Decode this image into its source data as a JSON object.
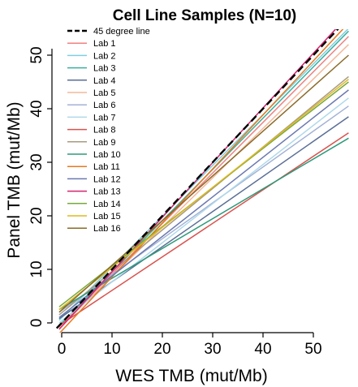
{
  "chart_data": {
    "type": "line",
    "title": "Cell Line Samples (N=10)",
    "xlabel": "WES TMB (mut/Mb)",
    "ylabel": "Panel TMB (mut/Mb)",
    "xlim": [
      -0.5,
      57
    ],
    "ylim": [
      -1.5,
      57
    ],
    "xticks": [
      0,
      10,
      20,
      30,
      40,
      50
    ],
    "yticks": [
      0,
      10,
      20,
      30,
      40,
      50
    ],
    "grid": false,
    "legend_position": "top-left",
    "reference_line": {
      "name": "45 degree line",
      "x": [
        -1,
        57
      ],
      "y": [
        -1,
        57
      ],
      "color": "#000000",
      "dash": "dashed"
    },
    "series": [
      {
        "name": "Lab 1",
        "color": "#f08080",
        "x": [
          -0.5,
          57
        ],
        "y": [
          -0.8,
          53.5
        ]
      },
      {
        "name": "Lab 2",
        "color": "#7fcfe0",
        "x": [
          -0.5,
          57
        ],
        "y": [
          0.5,
          55.0
        ]
      },
      {
        "name": "Lab 3",
        "color": "#3ab0a0",
        "x": [
          -0.5,
          57
        ],
        "y": [
          -0.5,
          54.5
        ]
      },
      {
        "name": "Lab 4",
        "color": "#5a6e96",
        "x": [
          -0.5,
          57
        ],
        "y": [
          0.8,
          38.5
        ]
      },
      {
        "name": "Lab 5",
        "color": "#f4b89a",
        "x": [
          -0.5,
          57
        ],
        "y": [
          -1.0,
          52.0
        ]
      },
      {
        "name": "Lab 6",
        "color": "#a3b2d6",
        "x": [
          -0.5,
          57
        ],
        "y": [
          2.0,
          40.5
        ]
      },
      {
        "name": "Lab 7",
        "color": "#b0d8ea",
        "x": [
          -0.5,
          57
        ],
        "y": [
          0.0,
          42.0
        ]
      },
      {
        "name": "Lab 8",
        "color": "#d9534f",
        "x": [
          -0.5,
          57
        ],
        "y": [
          -0.5,
          35.5
        ]
      },
      {
        "name": "Lab 9",
        "color": "#a89a80",
        "x": [
          -0.5,
          57
        ],
        "y": [
          1.5,
          46.0
        ]
      },
      {
        "name": "Lab 10",
        "color": "#2e9a7a",
        "x": [
          -0.5,
          57
        ],
        "y": [
          2.5,
          34.5
        ]
      },
      {
        "name": "Lab 11",
        "color": "#e8781e",
        "x": [
          -0.5,
          57
        ],
        "y": [
          -2.0,
          56.0
        ]
      },
      {
        "name": "Lab 12",
        "color": "#6a78b0",
        "x": [
          -0.5,
          57
        ],
        "y": [
          1.0,
          43.5
        ]
      },
      {
        "name": "Lab 13",
        "color": "#d4246e",
        "x": [
          -0.5,
          57
        ],
        "y": [
          -1.2,
          57.5
        ]
      },
      {
        "name": "Lab 14",
        "color": "#78a83c",
        "x": [
          -0.5,
          57
        ],
        "y": [
          3.0,
          45.0
        ]
      },
      {
        "name": "Lab 15",
        "color": "#e0b81e",
        "x": [
          -0.5,
          57
        ],
        "y": [
          2.5,
          45.5
        ]
      },
      {
        "name": "Lab 16",
        "color": "#8a6a28",
        "x": [
          -0.5,
          57
        ],
        "y": [
          2.0,
          50.0
        ]
      }
    ]
  }
}
